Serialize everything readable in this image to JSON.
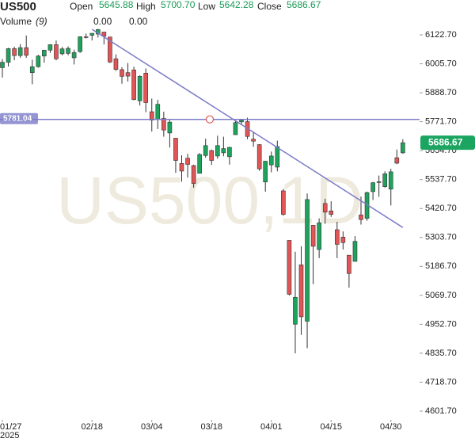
{
  "chart_data": {
    "type": "candlestick",
    "title": "US500",
    "ohlc_legend": {
      "open_label": "Open",
      "open": "5645.88",
      "high_label": "High",
      "high": "5700.70",
      "low_label": "Low",
      "low": "5642.28",
      "close_label": "Close",
      "close": "5686.67"
    },
    "volume_legend": {
      "label": "Volume",
      "period": "(9)",
      "values": [
        "0.00",
        "0.00"
      ],
      "colors": [
        "#e04545",
        "#3a7fd5"
      ]
    },
    "watermark": "US500,1D",
    "x": [
      "2025-01-27",
      "2025-01-28",
      "2025-01-29",
      "2025-01-30",
      "2025-01-31",
      "2025-02-03",
      "2025-02-04",
      "2025-02-05",
      "2025-02-06",
      "2025-02-07",
      "2025-02-10",
      "2025-02-11",
      "2025-02-12",
      "2025-02-13",
      "2025-02-14",
      "2025-02-18",
      "2025-02-19",
      "2025-02-20",
      "2025-02-21",
      "2025-02-24",
      "2025-02-25",
      "2025-02-26",
      "2025-02-27",
      "2025-02-28",
      "2025-03-03",
      "2025-03-04",
      "2025-03-05",
      "2025-03-06",
      "2025-03-07",
      "2025-03-10",
      "2025-03-11",
      "2025-03-12",
      "2025-03-13",
      "2025-03-14",
      "2025-03-17",
      "2025-03-18",
      "2025-03-19",
      "2025-03-20",
      "2025-03-21",
      "2025-03-24",
      "2025-03-25",
      "2025-03-26",
      "2025-03-27",
      "2025-03-28",
      "2025-03-31",
      "2025-04-01",
      "2025-04-02",
      "2025-04-03",
      "2025-04-04",
      "2025-04-07",
      "2025-04-08",
      "2025-04-09",
      "2025-04-10",
      "2025-04-11",
      "2025-04-14",
      "2025-04-15",
      "2025-04-16",
      "2025-04-17",
      "2025-04-21",
      "2025-04-22",
      "2025-04-23",
      "2025-04-24",
      "2025-04-25",
      "2025-04-28",
      "2025-04-29",
      "2025-04-30",
      "2025-05-01",
      "2025-05-02"
    ],
    "open": [
      5990,
      6012,
      6067,
      6039,
      6071,
      5970,
      5994,
      6037,
      6061,
      6083,
      6046,
      6048,
      6030,
      6055,
      6115,
      6121,
      6126,
      6134,
      6114,
      6026,
      5982,
      5970,
      5981,
      5856,
      5968,
      5812,
      5782,
      5785,
      5726,
      5705,
      5603,
      5624,
      5594,
      5563,
      5635,
      5655,
      5633,
      5646,
      5630,
      5719,
      5771,
      5772,
      5701,
      5679,
      5528,
      5597,
      5588,
      5492,
      5292,
      4953,
      5193,
      4965,
      5353,
      5255,
      5441,
      5411,
      5335,
      5305,
      5232,
      5207,
      5395,
      5381,
      5489,
      5529,
      5509,
      5499,
      5626,
      5645.88
    ],
    "high": [
      6025,
      6070,
      6075,
      6085,
      6120,
      6022,
      6042,
      6062,
      6085,
      6100,
      6074,
      6076,
      6063,
      6117,
      6128,
      6129,
      6147,
      6134,
      6115,
      6044,
      5992,
      6009,
      5994,
      5959,
      5987,
      5865,
      5860,
      5812,
      5783,
      5705,
      5636,
      5642,
      5598,
      5645,
      5703,
      5659,
      5715,
      5711,
      5670,
      5775,
      5783,
      5788,
      5732,
      5681,
      5613,
      5651,
      5695,
      5500,
      5292,
      5246,
      5268,
      5481,
      5353,
      5381,
      5460,
      5450,
      5367,
      5328,
      5232,
      5309,
      5469,
      5489,
      5528,
      5554,
      5571,
      5581,
      5659,
      5700.7
    ],
    "low": [
      5950,
      5995,
      6020,
      6030,
      6030,
      5923,
      5990,
      6010,
      6050,
      6020,
      6040,
      6040,
      6003,
      6050,
      6108,
      6100,
      6112,
      6084,
      6009,
      5977,
      5925,
      5934,
      5858,
      5837,
      5810,
      5732,
      5742,
      5711,
      5667,
      5565,
      5529,
      5546,
      5505,
      5563,
      5626,
      5597,
      5622,
      5632,
      5598,
      5719,
      5759,
      5701,
      5670,
      5573,
      5489,
      5567,
      5571,
      5391,
      5069,
      4835,
      4910,
      4856,
      5115,
      5220,
      5359,
      5387,
      5220,
      5255,
      5101,
      5207,
      5356,
      5371,
      5455,
      5468,
      5505,
      5433,
      5600,
      5642.28
    ],
    "close": [
      6012,
      6067,
      6039,
      6071,
      6040,
      5994,
      6037,
      6061,
      6083,
      6026,
      6066,
      6068,
      6051,
      6115,
      6114,
      6129,
      6144,
      6117,
      6013,
      5983,
      5955,
      5956,
      5861,
      5955,
      5849,
      5778,
      5842,
      5738,
      5770,
      5615,
      5572,
      5599,
      5522,
      5639,
      5675,
      5615,
      5675,
      5663,
      5668,
      5768,
      5777,
      5712,
      5693,
      5581,
      5612,
      5633,
      5671,
      5397,
      5074,
      5062,
      4983,
      5457,
      5268,
      5363,
      5406,
      5397,
      5276,
      5283,
      5158,
      5288,
      5376,
      5485,
      5525,
      5529,
      5561,
      5569,
      5604,
      5686.67
    ],
    "up_color": "#1fa35c",
    "down_color": "#e05555",
    "ylim": [
      4566.5,
      6263.6
    ],
    "yticks": [
      {
        "value": 6122.7,
        "label": "6122.70"
      },
      {
        "value": 6005.7,
        "label": "6005.70"
      },
      {
        "value": 5888.7,
        "label": "5888.70"
      },
      {
        "value": 5771.7,
        "label": "5771.70"
      },
      {
        "value": 5654.7,
        "label": "5654.70"
      },
      {
        "value": 5537.7,
        "label": "5537.70"
      },
      {
        "value": 5420.7,
        "label": "5420.70"
      },
      {
        "value": 5303.7,
        "label": "5303.70"
      },
      {
        "value": 5186.7,
        "label": "5186.70"
      },
      {
        "value": 5069.7,
        "label": "5069.70"
      },
      {
        "value": 4952.7,
        "label": "4952.70"
      },
      {
        "value": 4835.7,
        "label": "4835.70"
      },
      {
        "value": 4718.7,
        "label": "4718.70"
      },
      {
        "value": 4601.7,
        "label": "4601.70"
      }
    ],
    "xticks": [
      {
        "value": "2025-01-27",
        "label": "01/27"
      },
      {
        "value": "2025-02-18",
        "label": "02/18"
      },
      {
        "value": "2025-03-04",
        "label": "03/04"
      },
      {
        "value": "2025-03-18",
        "label": "03/18"
      },
      {
        "value": "2025-04-01",
        "label": "04/01"
      },
      {
        "value": "2025-04-15",
        "label": "04/15"
      },
      {
        "value": "2025-04-30",
        "label": "04/30"
      }
    ],
    "year_label": "2025",
    "hline": {
      "value": 5781.04,
      "color": "#7b7bc8"
    },
    "trend_line": {
      "x": [
        "2025-02-18",
        "2025-05-02"
      ],
      "values": [
        6145,
        5344
      ],
      "color": "#7b7bc8"
    },
    "last_price_color": "#1ba561"
  }
}
